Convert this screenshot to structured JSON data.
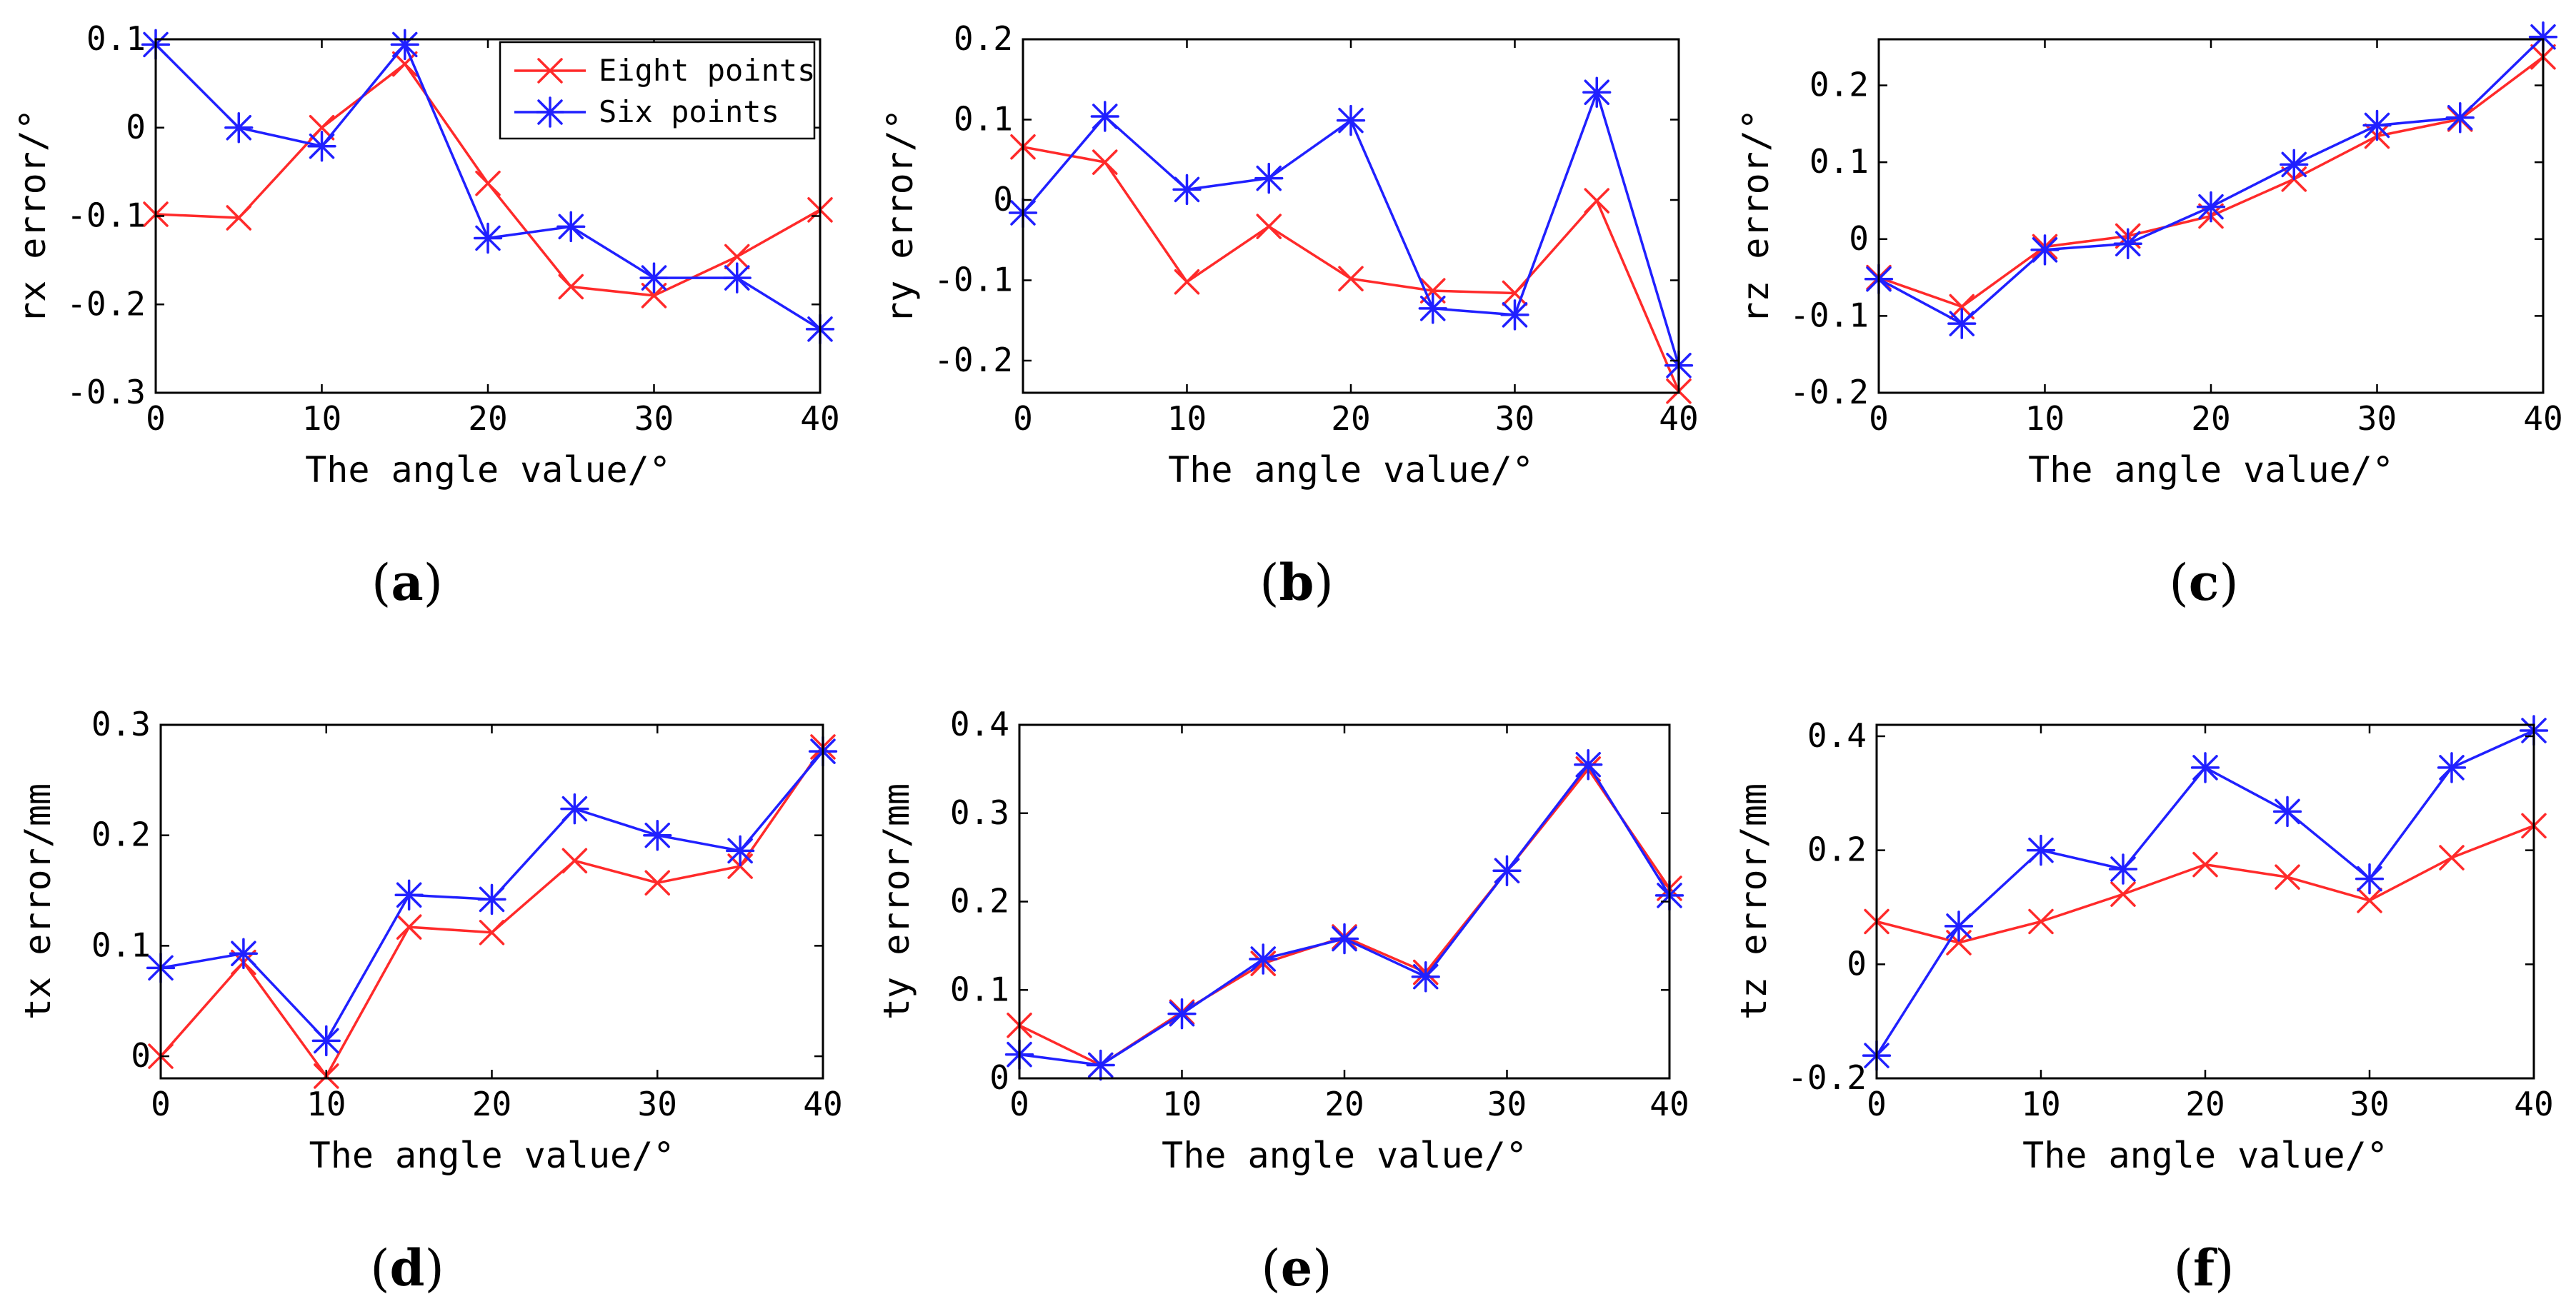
{
  "figure": {
    "colors": {
      "eight_points": "#ff2a2a",
      "six_points": "#2020ff"
    },
    "legend": {
      "eight_points": "Eight points",
      "six_points": "Six points",
      "placement": "top-right of panel (a)"
    }
  },
  "chart_data": [
    {
      "type": "line",
      "panel": "a",
      "caption_letter": "a",
      "xlabel": "The angle value/°",
      "ylabel": "rx error/°",
      "xlim": [
        0,
        40
      ],
      "ylim": [
        -0.3,
        0.1
      ],
      "xticks": [
        0,
        10,
        20,
        30,
        40
      ],
      "xtick_labels": [
        "0",
        "10",
        "20",
        "30",
        "40"
      ],
      "yticks": [
        -0.3,
        -0.2,
        -0.1,
        0,
        0.1
      ],
      "ytick_labels": [
        "-0.3",
        "-0.2",
        "-0.1",
        "0",
        "0.1"
      ],
      "x": [
        0,
        5,
        10,
        15,
        20,
        25,
        30,
        35,
        40
      ],
      "series": [
        {
          "name": "Eight points",
          "marker": "x",
          "values": [
            -0.098,
            -0.102,
            0.0,
            0.072,
            -0.063,
            -0.18,
            -0.19,
            -0.146,
            -0.093
          ]
        },
        {
          "name": "Six points",
          "marker": "*",
          "values": [
            0.094,
            0.0,
            -0.021,
            0.094,
            -0.125,
            -0.112,
            -0.17,
            -0.17,
            -0.228
          ]
        }
      ]
    },
    {
      "type": "line",
      "panel": "b",
      "caption_letter": "b",
      "xlabel": "The angle value/°",
      "ylabel": "ry error/°",
      "xlim": [
        0,
        40
      ],
      "ylim": [
        -0.24,
        0.2
      ],
      "xticks": [
        0,
        10,
        20,
        30,
        40
      ],
      "xtick_labels": [
        "0",
        "10",
        "20",
        "30",
        "40"
      ],
      "yticks": [
        -0.2,
        -0.1,
        0,
        0.1,
        0.2
      ],
      "ytick_labels": [
        "-0.2",
        "-0.1",
        "0",
        "0.1",
        "0.2"
      ],
      "x": [
        0,
        5,
        10,
        15,
        20,
        25,
        30,
        35,
        40
      ],
      "series": [
        {
          "name": "Eight points",
          "marker": "x",
          "values": [
            0.066,
            0.047,
            -0.102,
            -0.033,
            -0.098,
            -0.113,
            -0.116,
            -0.001,
            -0.238
          ]
        },
        {
          "name": "Six points",
          "marker": "*",
          "values": [
            -0.016,
            0.104,
            0.013,
            0.027,
            0.099,
            -0.135,
            -0.143,
            0.134,
            -0.206
          ]
        }
      ]
    },
    {
      "type": "line",
      "panel": "c",
      "caption_letter": "c",
      "xlabel": "The angle value/°",
      "ylabel": "rz error/°",
      "xlim": [
        0,
        40
      ],
      "ylim": [
        -0.2,
        0.26
      ],
      "xticks": [
        0,
        10,
        20,
        30,
        40
      ],
      "xtick_labels": [
        "0",
        "10",
        "20",
        "30",
        "40"
      ],
      "yticks": [
        -0.2,
        -0.1,
        0,
        0.1,
        0.2
      ],
      "ytick_labels": [
        "-0.2",
        "-0.1",
        "0",
        "0.1",
        "0.2"
      ],
      "x": [
        0,
        5,
        10,
        15,
        20,
        25,
        30,
        35,
        40
      ],
      "series": [
        {
          "name": "Eight points",
          "marker": "x",
          "values": [
            -0.05,
            -0.088,
            -0.01,
            0.004,
            0.03,
            0.078,
            0.134,
            0.156,
            0.237
          ]
        },
        {
          "name": "Six points",
          "marker": "*",
          "values": [
            -0.052,
            -0.11,
            -0.014,
            -0.006,
            0.042,
            0.097,
            0.148,
            0.158,
            0.263
          ]
        }
      ]
    },
    {
      "type": "line",
      "panel": "d",
      "caption_letter": "d",
      "xlabel": "The angle value/°",
      "ylabel": "tx error/mm",
      "xlim": [
        0,
        40
      ],
      "ylim": [
        -0.02,
        0.3
      ],
      "xticks": [
        0,
        10,
        20,
        30,
        40
      ],
      "xtick_labels": [
        "0",
        "10",
        "20",
        "30",
        "40"
      ],
      "yticks": [
        0,
        0.1,
        0.2,
        0.3
      ],
      "ytick_labels": [
        "0",
        "0.1",
        "0.2",
        "0.3"
      ],
      "x": [
        0,
        5,
        10,
        15,
        20,
        25,
        30,
        35,
        40
      ],
      "series": [
        {
          "name": "Eight points",
          "marker": "x",
          "values": [
            0.0,
            0.085,
            -0.018,
            0.117,
            0.112,
            0.177,
            0.157,
            0.172,
            0.28
          ]
        },
        {
          "name": "Six points",
          "marker": "*",
          "values": [
            0.08,
            0.093,
            0.014,
            0.146,
            0.142,
            0.224,
            0.2,
            0.186,
            0.276
          ]
        }
      ]
    },
    {
      "type": "line",
      "panel": "e",
      "caption_letter": "e",
      "xlabel": "The angle value/°",
      "ylabel": "ty error/mm",
      "xlim": [
        0,
        40
      ],
      "ylim": [
        0,
        0.4
      ],
      "xticks": [
        0,
        10,
        20,
        30,
        40
      ],
      "xtick_labels": [
        "0",
        "10",
        "20",
        "30",
        "40"
      ],
      "yticks": [
        0,
        0.1,
        0.2,
        0.3,
        0.4
      ],
      "ytick_labels": [
        "0",
        "0.1",
        "0.2",
        "0.3",
        "0.4"
      ],
      "x": [
        0,
        5,
        10,
        15,
        20,
        25,
        30,
        35,
        40
      ],
      "series": [
        {
          "name": "Eight points",
          "marker": "x",
          "values": [
            0.06,
            0.015,
            0.075,
            0.13,
            0.16,
            0.12,
            0.235,
            0.35,
            0.215
          ]
        },
        {
          "name": "Six points",
          "marker": "*",
          "values": [
            0.027,
            0.015,
            0.073,
            0.135,
            0.158,
            0.115,
            0.235,
            0.355,
            0.207
          ]
        }
      ]
    },
    {
      "type": "line",
      "panel": "f",
      "caption_letter": "f",
      "xlabel": "The angle value/°",
      "ylabel": "tz error/mm",
      "xlim": [
        0,
        40
      ],
      "ylim": [
        -0.2,
        0.42
      ],
      "xticks": [
        0,
        10,
        20,
        30,
        40
      ],
      "xtick_labels": [
        "0",
        "10",
        "20",
        "30",
        "40"
      ],
      "yticks": [
        -0.2,
        0,
        0.2,
        0.4
      ],
      "ytick_labels": [
        "-0.2",
        "0",
        "0.2",
        "0.4"
      ],
      "x": [
        0,
        5,
        10,
        15,
        20,
        25,
        30,
        35,
        40
      ],
      "series": [
        {
          "name": "Eight points",
          "marker": "x",
          "values": [
            0.075,
            0.038,
            0.075,
            0.123,
            0.175,
            0.153,
            0.112,
            0.187,
            0.243
          ]
        },
        {
          "name": "Six points",
          "marker": "*",
          "values": [
            -0.16,
            0.067,
            0.2,
            0.167,
            0.345,
            0.268,
            0.15,
            0.345,
            0.41
          ]
        }
      ]
    }
  ]
}
